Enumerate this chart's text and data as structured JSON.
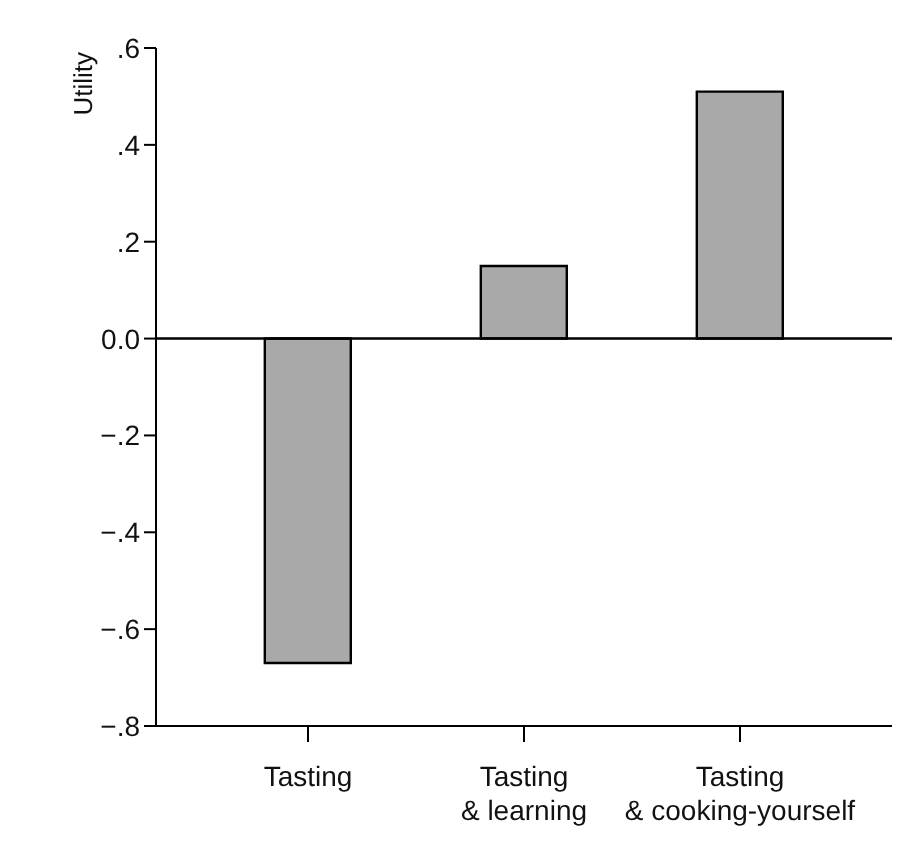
{
  "chart_data": {
    "type": "bar",
    "ylabel": "Utility",
    "categories": [
      "Tasting",
      "Tasting\n& learning",
      "Tasting\n& cooking-yourself"
    ],
    "values": [
      -0.67,
      0.15,
      0.51
    ],
    "color": "#a9a9a9",
    "ylim": [
      -0.8,
      0.6
    ],
    "yticks": [
      {
        "value": 0.6,
        "label": ".6"
      },
      {
        "value": 0.4,
        "label": ".4"
      },
      {
        "value": 0.2,
        "label": ".2"
      },
      {
        "value": 0,
        "label": "0.0"
      },
      {
        "value": -0.2,
        "label": "−.2"
      },
      {
        "value": -0.4,
        "label": "−.4"
      },
      {
        "value": -0.6,
        "label": "−.6"
      },
      {
        "value": -0.8,
        "label": "−.8"
      }
    ],
    "ref_lines": [
      {
        "axis": "y",
        "value": 0,
        "color": "#000000"
      }
    ],
    "grid": false,
    "legend": false
  }
}
